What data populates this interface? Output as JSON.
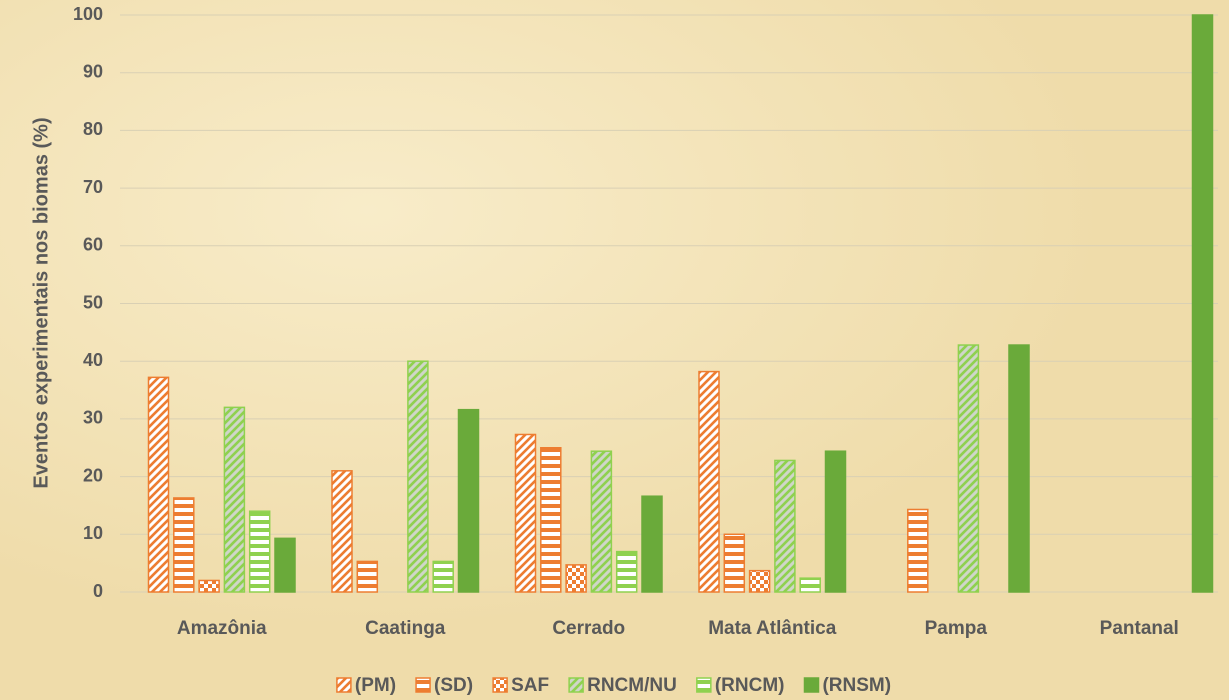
{
  "chart_data": {
    "type": "bar",
    "y_axis_label": "Eventos experimentais nos biomas (%)",
    "categories": [
      "Amazônia",
      "Caatinga",
      "Cerrado",
      "Mata Atlântica",
      "Pampa",
      "Pantanal"
    ],
    "series": [
      {
        "name": "(PM)",
        "color": "#ed7d31",
        "pattern": "diagonal",
        "values": [
          37.2,
          21,
          27.3,
          38.2,
          0,
          0
        ]
      },
      {
        "name": "(SD)",
        "color": "#ed7d31",
        "pattern": "horizontal",
        "values": [
          16.3,
          5.3,
          25,
          10,
          14.3,
          0
        ]
      },
      {
        "name": "SAF",
        "color": "#ed7d31",
        "pattern": "checker",
        "values": [
          2,
          0,
          4.7,
          3.7,
          0,
          0
        ]
      },
      {
        "name": "RNCM/NU",
        "color": "#8fd14f",
        "pattern": "diagonal",
        "values": [
          32,
          40,
          24.4,
          22.8,
          42.8,
          0
        ]
      },
      {
        "name": "(RNCM)",
        "color": "#8fd14f",
        "pattern": "horizontal",
        "values": [
          14,
          5.3,
          7,
          2.4,
          0,
          0
        ]
      },
      {
        "name": "(RNSM)",
        "color": "#6aaa3a",
        "pattern": "solid",
        "values": [
          9.3,
          31.6,
          16.6,
          24.4,
          42.8,
          100
        ]
      }
    ],
    "ylim": [
      0,
      100
    ],
    "yticks": [
      0,
      10,
      20,
      30,
      40,
      50,
      60,
      70,
      80,
      90,
      100
    ],
    "grid": true,
    "legend": "bottom"
  }
}
